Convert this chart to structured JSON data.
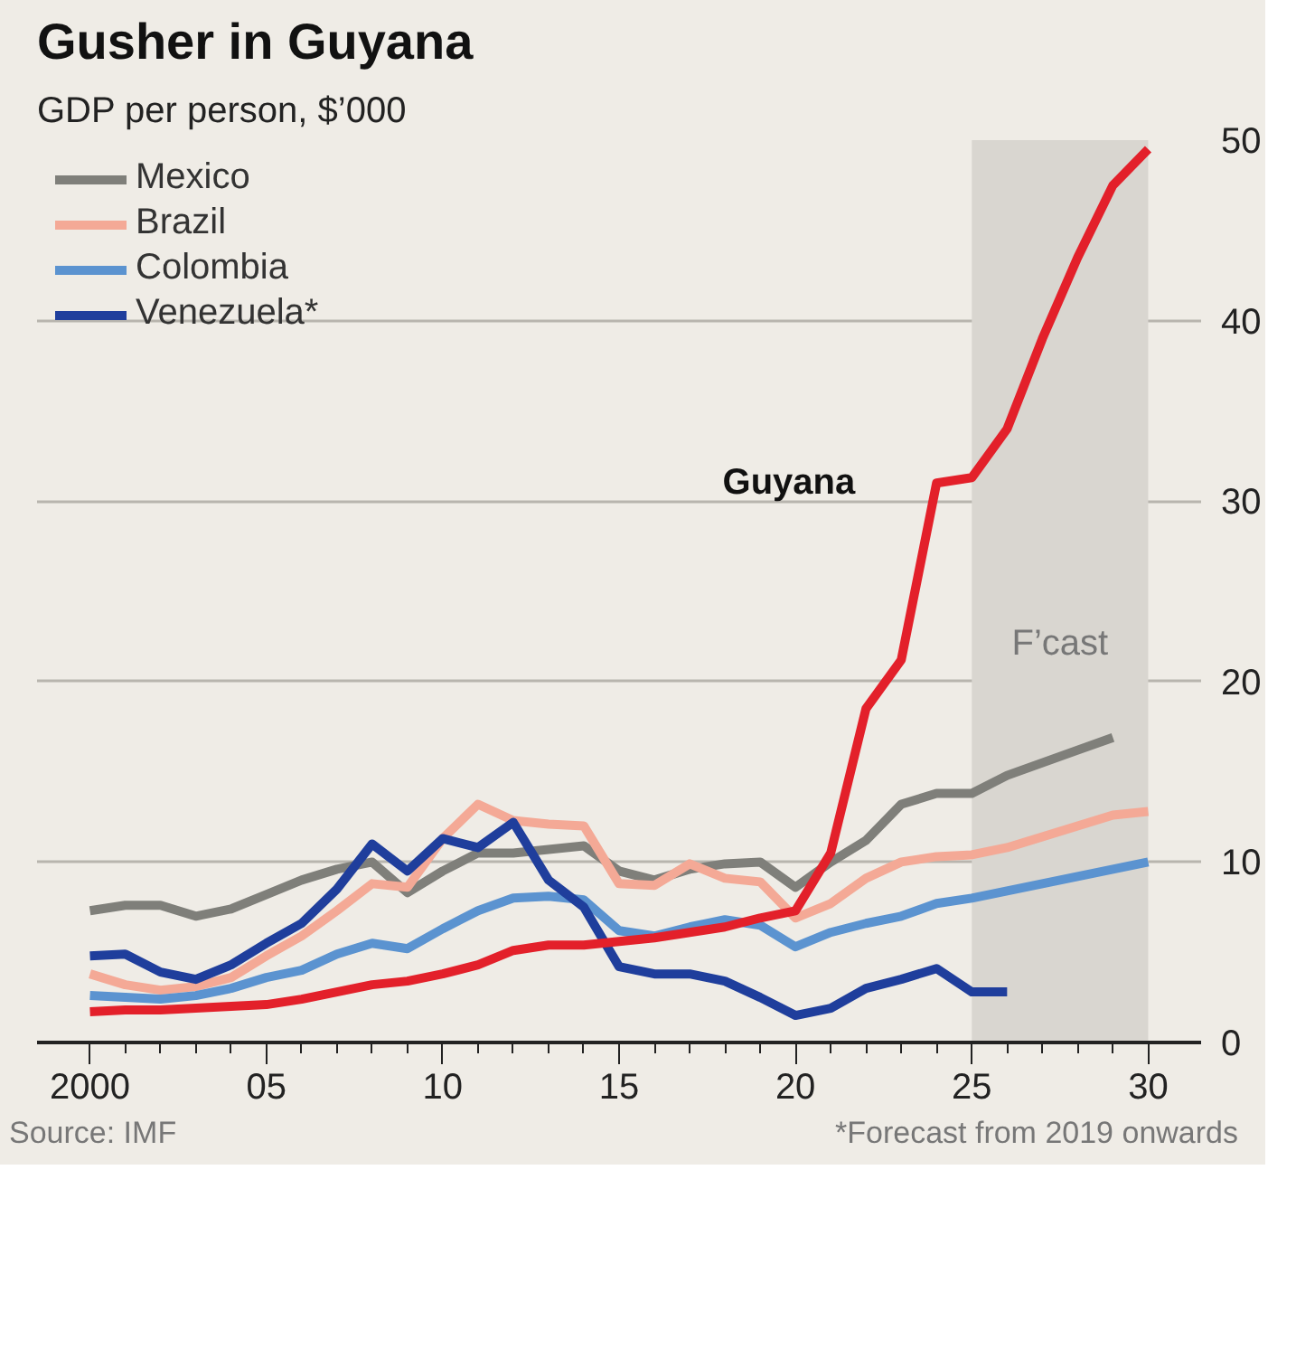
{
  "chart_data": {
    "type": "line",
    "title": "Gusher in Guyana",
    "subtitle": "GDP per person, $’000",
    "x": [
      2000,
      2001,
      2002,
      2003,
      2004,
      2005,
      2006,
      2007,
      2008,
      2009,
      2010,
      2011,
      2012,
      2013,
      2014,
      2015,
      2016,
      2017,
      2018,
      2019,
      2020,
      2021,
      2022,
      2023,
      2024,
      2025,
      2026,
      2027,
      2028,
      2029,
      2030
    ],
    "series": [
      {
        "name": "Mexico",
        "color": "#7f7f7a",
        "values": [
          7.3,
          7.6,
          7.6,
          7.0,
          7.4,
          8.2,
          9.0,
          9.6,
          10.0,
          8.3,
          9.5,
          10.5,
          10.5,
          10.7,
          10.9,
          9.5,
          9.0,
          9.6,
          9.9,
          10.0,
          8.6,
          10.0,
          11.2,
          13.2,
          13.8,
          13.8,
          14.8,
          15.5,
          16.2,
          16.9,
          null
        ]
      },
      {
        "name": "Brazil",
        "color": "#f4a996",
        "values": [
          3.8,
          3.2,
          2.9,
          3.1,
          3.6,
          4.8,
          5.9,
          7.3,
          8.8,
          8.6,
          11.3,
          13.2,
          12.3,
          12.1,
          12.0,
          8.8,
          8.7,
          9.9,
          9.1,
          8.9,
          6.9,
          7.7,
          9.1,
          10.0,
          10.3,
          10.4,
          10.8,
          11.4,
          12.0,
          12.6,
          12.8
        ]
      },
      {
        "name": "Colombia",
        "color": "#5b93d0",
        "values": [
          2.6,
          2.5,
          2.4,
          2.6,
          3.0,
          3.6,
          4.0,
          4.9,
          5.5,
          5.2,
          6.3,
          7.3,
          8.0,
          8.1,
          7.9,
          6.2,
          5.9,
          6.4,
          6.8,
          6.5,
          5.3,
          6.1,
          6.6,
          7.0,
          7.7,
          8.0,
          8.4,
          8.8,
          9.2,
          9.6,
          10.0
        ]
      },
      {
        "name": "Venezuela*",
        "color": "#1f3e9c",
        "values": [
          4.8,
          4.9,
          3.9,
          3.5,
          4.3,
          5.5,
          6.6,
          8.5,
          11.0,
          9.5,
          11.3,
          10.8,
          12.2,
          9.0,
          7.5,
          4.2,
          3.8,
          3.8,
          3.4,
          2.5,
          1.5,
          1.9,
          3.0,
          3.5,
          4.1,
          2.8,
          2.8,
          null,
          null,
          null,
          null
        ]
      },
      {
        "name": "Guyana",
        "color": "#e3202a",
        "values": [
          1.7,
          1.8,
          1.8,
          1.9,
          2.0,
          2.1,
          2.4,
          2.8,
          3.2,
          3.4,
          3.8,
          4.3,
          5.1,
          5.4,
          5.4,
          5.6,
          5.8,
          6.1,
          6.4,
          6.9,
          7.3,
          10.5,
          18.5,
          21.2,
          31.0,
          31.3,
          34.0,
          39.0,
          43.5,
          47.5,
          49.5
        ]
      }
    ],
    "xlim": [
      1998.5,
      2031.5
    ],
    "ylim": [
      0,
      50
    ],
    "xticks": [
      {
        "value": 2000,
        "label": "2000"
      },
      {
        "value": 2001,
        "label": null
      },
      {
        "value": 2002,
        "label": null
      },
      {
        "value": 2003,
        "label": null
      },
      {
        "value": 2004,
        "label": null
      },
      {
        "value": 2005,
        "label": "05"
      },
      {
        "value": 2006,
        "label": null
      },
      {
        "value": 2007,
        "label": null
      },
      {
        "value": 2008,
        "label": null
      },
      {
        "value": 2009,
        "label": null
      },
      {
        "value": 2010,
        "label": "10"
      },
      {
        "value": 2011,
        "label": null
      },
      {
        "value": 2012,
        "label": null
      },
      {
        "value": 2013,
        "label": null
      },
      {
        "value": 2014,
        "label": null
      },
      {
        "value": 2015,
        "label": "15"
      },
      {
        "value": 2016,
        "label": null
      },
      {
        "value": 2017,
        "label": null
      },
      {
        "value": 2018,
        "label": null
      },
      {
        "value": 2019,
        "label": null
      },
      {
        "value": 2020,
        "label": "20"
      },
      {
        "value": 2021,
        "label": null
      },
      {
        "value": 2022,
        "label": null
      },
      {
        "value": 2023,
        "label": null
      },
      {
        "value": 2024,
        "label": null
      },
      {
        "value": 2025,
        "label": "25"
      },
      {
        "value": 2026,
        "label": null
      },
      {
        "value": 2027,
        "label": null
      },
      {
        "value": 2028,
        "label": null
      },
      {
        "value": 2029,
        "label": null
      },
      {
        "value": 2030,
        "label": "30"
      }
    ],
    "yticks": [
      0,
      10,
      20,
      30,
      40,
      50
    ],
    "bands": [
      {
        "axis": "x",
        "from": 2025,
        "to": 2030,
        "label": "F’cast",
        "color": "#d9d6d0"
      }
    ],
    "annotations": [
      "Source: IMF",
      "*Forecast from 2019 onwards"
    ],
    "grid": "y",
    "legend": "top left",
    "marker": "none",
    "line_style": "solid"
  }
}
